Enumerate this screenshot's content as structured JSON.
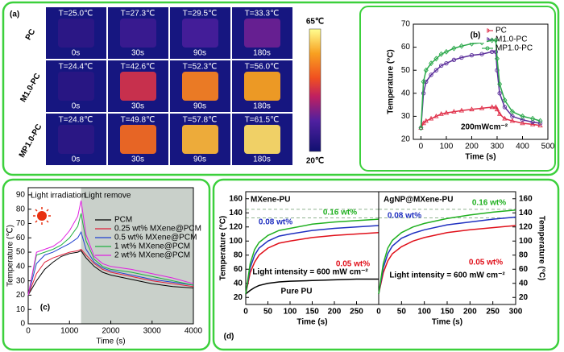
{
  "thermal": {
    "label": "(a)",
    "rows": [
      "PC",
      "M1.0-PC",
      "MP1.0-PC"
    ],
    "times": [
      "0s",
      "30s",
      "90s",
      "180s"
    ],
    "temps": [
      [
        {
          "value": 25.0,
          "label": "T=25.0℃"
        },
        {
          "value": 27.3,
          "label": "T=27.3℃"
        },
        {
          "value": 29.5,
          "label": "T=29.5℃"
        },
        {
          "value": 33.3,
          "label": "T=33.3℃"
        }
      ],
      [
        {
          "value": 24.4,
          "label": "T=24.4℃"
        },
        {
          "value": 42.6,
          "label": "T=42.6℃"
        },
        {
          "value": 52.3,
          "label": "T=52.3℃"
        },
        {
          "value": 56.0,
          "label": "T=56.0℃"
        }
      ],
      [
        {
          "value": 24.8,
          "label": "T=24.8℃"
        },
        {
          "value": 49.8,
          "label": "T=49.8℃"
        },
        {
          "value": 57.8,
          "label": "T=57.8℃"
        },
        {
          "value": 61.5,
          "label": "T=61.5℃"
        }
      ]
    ],
    "colorbar": {
      "max": {
        "value": 65,
        "label": "65℃"
      },
      "min": {
        "value": 20,
        "label": "20℃"
      }
    }
  },
  "chart_data": [
    {
      "type": "line",
      "panel_label": "(b)",
      "xlabel": "Time (s)",
      "ylabel": "Temperature (°C)",
      "annotations": [
        "200mWcm⁻²"
      ],
      "legend": "upper right",
      "xlim": [
        -30,
        500
      ],
      "xticks": [
        0,
        100,
        200,
        300,
        400,
        500
      ],
      "ylim": [
        20,
        70
      ],
      "yticks": [
        20,
        30,
        40,
        50,
        60,
        70
      ],
      "x": [
        0,
        10,
        20,
        40,
        60,
        80,
        100,
        130,
        160,
        200,
        240,
        280,
        295,
        300,
        310,
        330,
        360,
        400,
        440,
        470
      ],
      "series": [
        {
          "name": "PC",
          "color": "#e0304a",
          "marker": "triangle",
          "values": [
            25,
            27,
            28,
            29,
            30,
            31,
            31.5,
            32,
            32.5,
            33,
            33.5,
            34,
            34,
            33,
            31,
            29,
            28,
            27,
            26.5,
            26
          ]
        },
        {
          "name": "M1.0-PC",
          "color": "#5a2d9a",
          "marker": "circle",
          "values": [
            25,
            40,
            45,
            48,
            50,
            52,
            53,
            54.5,
            55.5,
            56.5,
            57,
            58,
            58,
            50,
            40,
            34,
            30,
            28.5,
            27.5,
            27
          ]
        },
        {
          "name": "MP1.0-PC",
          "color": "#2aa84a",
          "marker": "diamond",
          "values": [
            25,
            45,
            50,
            53,
            55,
            57,
            58,
            59.5,
            60.5,
            61.5,
            62,
            63,
            63,
            55,
            44,
            37,
            32,
            30,
            29,
            28
          ]
        }
      ]
    },
    {
      "type": "line",
      "panel_label": "(c)",
      "xlabel": "Time (s)",
      "ylabel": "Temperature (℃)",
      "annotations": [
        "Light irradiation",
        "Light remove"
      ],
      "legend": "center right",
      "shaded_xrange": [
        1280,
        4000
      ],
      "shade_color": "#c9d0ca",
      "xlim": [
        0,
        4000
      ],
      "xticks": [
        0,
        1000,
        2000,
        3000,
        4000
      ],
      "ylim": [
        0,
        95
      ],
      "yticks": [
        0,
        10,
        20,
        30,
        40,
        50,
        60,
        70,
        80,
        90
      ],
      "x": [
        0,
        200,
        400,
        600,
        800,
        1000,
        1200,
        1280,
        1400,
        1600,
        1800,
        2000,
        2500,
        3000,
        3500,
        4000
      ],
      "series": [
        {
          "name": "PCM",
          "color": "#000000",
          "values": [
            20,
            30,
            38,
            43,
            47,
            49,
            50,
            51,
            46,
            40,
            36,
            34,
            31,
            28,
            26,
            25
          ]
        },
        {
          "name": "0.25 wt% MXene@PCM",
          "color": "#e0203a",
          "values": [
            20,
            35,
            43,
            46,
            48,
            50,
            51,
            52,
            48,
            42,
            38,
            36,
            33,
            30,
            28,
            26
          ]
        },
        {
          "name": "0.5 wt% MXene@PCM",
          "color": "#2040d0",
          "values": [
            20,
            42,
            48,
            50,
            53,
            56,
            60,
            64,
            52,
            43,
            39,
            37,
            34,
            31,
            29,
            27
          ]
        },
        {
          "name": "1 wt% MXene@PCM",
          "color": "#20b040",
          "values": [
            20,
            48,
            50,
            52,
            55,
            60,
            68,
            77,
            58,
            45,
            40,
            38,
            36,
            33,
            30,
            27
          ]
        },
        {
          "name": "2 wt% MXene@PCM",
          "color": "#e020e0",
          "values": [
            20,
            50,
            52,
            54,
            58,
            65,
            75,
            86,
            62,
            47,
            42,
            40,
            38,
            35,
            32,
            28
          ]
        }
      ]
    },
    {
      "type": "line",
      "panel_label": "(d)",
      "title": "MXene-PU",
      "xlabel": "Time (s)",
      "ylabel": "Temperature (°C)",
      "annotations": [
        "Light intensity = 600 mW cm⁻²"
      ],
      "legend": "inline",
      "reference_lines": [
        145,
        133
      ],
      "xlim": [
        0,
        300
      ],
      "xticks": [
        0,
        50,
        100,
        150,
        200,
        250
      ],
      "ylim": [
        10,
        170
      ],
      "yticks": [
        20,
        40,
        60,
        80,
        100,
        120,
        140,
        160
      ],
      "x": [
        0,
        10,
        20,
        30,
        50,
        75,
        100,
        150,
        200,
        250,
        300
      ],
      "series": [
        {
          "name": "Pure PU",
          "color": "#000000",
          "values": [
            25,
            30,
            34,
            37,
            40,
            42,
            43,
            44,
            45,
            46,
            46
          ]
        },
        {
          "name": "0.05 wt%",
          "color": "#e0101a",
          "values": [
            25,
            55,
            70,
            80,
            90,
            97,
            100,
            105,
            108,
            110,
            112
          ]
        },
        {
          "name": "0.08 wt%",
          "color": "#2030c0",
          "values": [
            25,
            62,
            80,
            90,
            100,
            107,
            110,
            115,
            118,
            120,
            122
          ]
        },
        {
          "name": "0.16 wt%",
          "color": "#20b020",
          "values": [
            25,
            68,
            88,
            98,
            108,
            115,
            118,
            124,
            127,
            129,
            131
          ]
        }
      ]
    },
    {
      "type": "line",
      "title": "AgNP@MXene-PU",
      "xlabel": "Time (s)",
      "y2label": "Temperature (°C)",
      "annotations": [
        "Light intensity = 600 mW cm⁻²"
      ],
      "legend": "inline",
      "reference_lines": [
        145,
        133
      ],
      "xlim": [
        0,
        300
      ],
      "xticks": [
        0,
        50,
        100,
        150,
        200,
        250,
        300
      ],
      "y2lim": [
        10,
        170
      ],
      "y2ticks": [
        20,
        40,
        60,
        80,
        100,
        120,
        140,
        160
      ],
      "x": [
        0,
        10,
        20,
        30,
        50,
        75,
        100,
        150,
        200,
        250,
        300
      ],
      "series": [
        {
          "name": "0.05 wt%",
          "color": "#e0101a",
          "axis": "y2",
          "values": [
            25,
            55,
            72,
            82,
            92,
            100,
            105,
            112,
            116,
            119,
            122
          ]
        },
        {
          "name": "0.08 wt%",
          "color": "#2030c0",
          "axis": "y2",
          "values": [
            25,
            62,
            82,
            93,
            104,
            111,
            116,
            123,
            127,
            131,
            134
          ]
        },
        {
          "name": "0.16 wt%",
          "color": "#20b020",
          "axis": "y2",
          "values": [
            25,
            68,
            90,
            101,
            112,
            120,
            125,
            132,
            137,
            141,
            144
          ]
        }
      ]
    }
  ]
}
